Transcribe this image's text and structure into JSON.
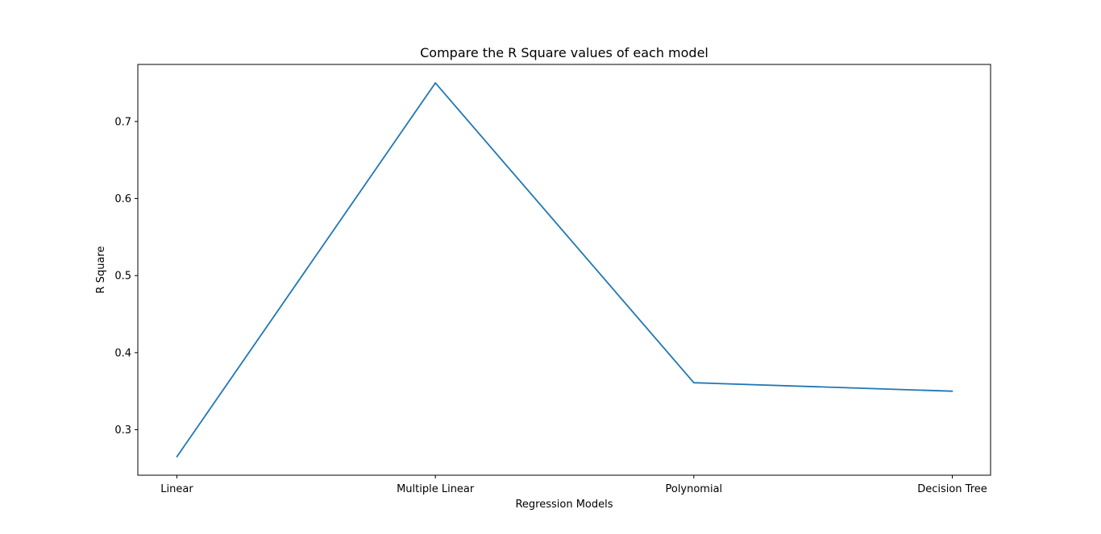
{
  "chart_data": {
    "type": "line",
    "title": "Compare the R Square values of each model",
    "xlabel": "Regression Models",
    "ylabel": "R Square",
    "categories": [
      "Linear",
      "Multiple Linear",
      "Polynomial",
      "Decision Tree"
    ],
    "values": [
      0.265,
      0.75,
      0.361,
      0.35
    ],
    "ylim": [
      0.241,
      0.774
    ],
    "yticks": [
      0.3,
      0.4,
      0.5,
      0.6,
      0.7
    ],
    "ytick_labels": [
      "0.3",
      "0.4",
      "0.5",
      "0.6",
      "0.7"
    ],
    "line_color": "#1f77b4",
    "grid": false,
    "legend": false
  }
}
